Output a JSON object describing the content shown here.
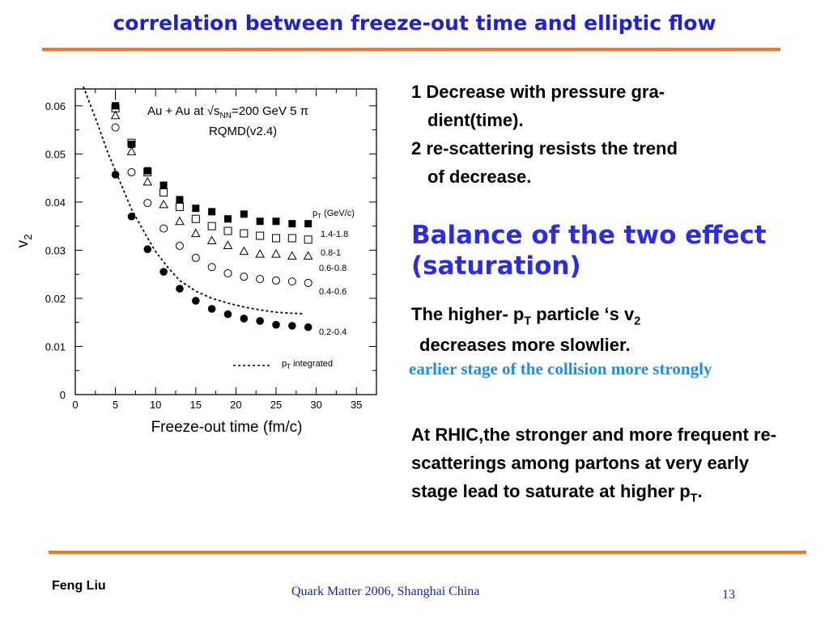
{
  "slide": {
    "title": "correlation between freeze-out time and elliptic flow",
    "points": [
      {
        "lead": "1 Decrease with pressure gra-",
        "cont": "dient(time)."
      },
      {
        "lead": "2 re-scattering resists the trend",
        "cont": "of decrease."
      }
    ],
    "balance_line1": "Balance of the two effect",
    "balance_line2": "(saturation)",
    "higher_a": "The higher- p",
    "higher_sub1": "T",
    "higher_b": " particle ‘s v",
    "higher_sub2": "2",
    "higher_cont": "decreases more slowlier.",
    "earlier": "earlier stage of the collision more strongly",
    "rhic_a": "At RHIC,the stronger and more frequent re-scatterings among partons at very early stage lead to saturate at higher p",
    "rhic_sub": "T",
    "rhic_end": ".",
    "footer_author": "Feng Liu",
    "footer_conf": "Quark Matter 2006,  Shanghai  China",
    "footer_page": "13",
    "colors": {
      "title": "#2222cc",
      "rule": "#f07820",
      "balance": "#2c2ce0",
      "earlier": "#1e8ee8"
    }
  },
  "chart_data": {
    "type": "scatter",
    "title_a": "Au + Au at √s",
    "title_sub": "NN",
    "title_b": "=200 GeV 5 π",
    "subtitle": "RQMD(v2.4)",
    "xlabel": "Freeze-out time (fm/c)",
    "ylabel": "v",
    "ylabel_sub": "2",
    "xlim": [
      0,
      37.5
    ],
    "ylim": [
      0,
      0.0635
    ],
    "xticks": [
      0,
      5,
      10,
      15,
      20,
      25,
      30,
      35
    ],
    "yticks": [
      0,
      0.01,
      0.02,
      0.03,
      0.04,
      0.05,
      0.06
    ],
    "legend_title_a": "p",
    "legend_title_sub": "T",
    "legend_title_b": " (GeV/c)",
    "series": [
      {
        "name": "1.4-1.8",
        "marker": "filled-square",
        "x": [
          5,
          7,
          9,
          11,
          13,
          15,
          17,
          19,
          21,
          23,
          25,
          27,
          29
        ],
        "y": [
          0.06,
          0.052,
          0.0465,
          0.0435,
          0.0405,
          0.0387,
          0.038,
          0.0365,
          0.0375,
          0.036,
          0.036,
          0.0355,
          0.0355
        ]
      },
      {
        "name": "0.8-1",
        "marker": "open-square",
        "x": [
          5,
          7,
          9,
          11,
          13,
          15,
          17,
          19,
          21,
          23,
          25,
          27,
          29
        ],
        "y": [
          0.0595,
          0.0523,
          0.0462,
          0.042,
          0.039,
          0.0365,
          0.035,
          0.034,
          0.0335,
          0.033,
          0.0325,
          0.0325,
          0.0322
        ]
      },
      {
        "name": "0.6-0.8",
        "marker": "open-triangle",
        "x": [
          5,
          7,
          9,
          11,
          13,
          15,
          17,
          19,
          21,
          23,
          25,
          27,
          29
        ],
        "y": [
          0.058,
          0.0505,
          0.0442,
          0.0395,
          0.036,
          0.0335,
          0.032,
          0.031,
          0.0298,
          0.0292,
          0.0292,
          0.0288,
          0.0288
        ]
      },
      {
        "name": "0.4-0.6",
        "marker": "open-circle",
        "x": [
          5,
          7,
          9,
          11,
          13,
          15,
          17,
          19,
          21,
          23,
          25,
          27,
          29
        ],
        "y": [
          0.0555,
          0.0462,
          0.0398,
          0.0345,
          0.0309,
          0.0284,
          0.0265,
          0.0252,
          0.0245,
          0.024,
          0.0237,
          0.0235,
          0.0232
        ]
      },
      {
        "name": "0.2-0.4",
        "marker": "filled-circle",
        "x": [
          5,
          7,
          9,
          11,
          13,
          15,
          17,
          19,
          21,
          23,
          25,
          27,
          29
        ],
        "y": [
          0.0457,
          0.037,
          0.0302,
          0.0255,
          0.022,
          0.0195,
          0.0178,
          0.0167,
          0.0158,
          0.0153,
          0.0145,
          0.0143,
          0.014
        ]
      },
      {
        "name": "p",
        "name_sub": "T",
        "name_rest": " integrated",
        "marker": "dashed-line",
        "x": [
          1,
          2.5,
          4,
          5.5,
          7,
          8.5,
          10,
          11.5,
          13,
          15,
          17,
          19,
          21,
          23,
          25,
          27,
          28.5
        ],
        "y": [
          0.064,
          0.0575,
          0.0505,
          0.0445,
          0.0385,
          0.034,
          0.0297,
          0.0265,
          0.0237,
          0.0215,
          0.02,
          0.019,
          0.0182,
          0.0176,
          0.0171,
          0.0169,
          0.0168
        ]
      }
    ]
  }
}
